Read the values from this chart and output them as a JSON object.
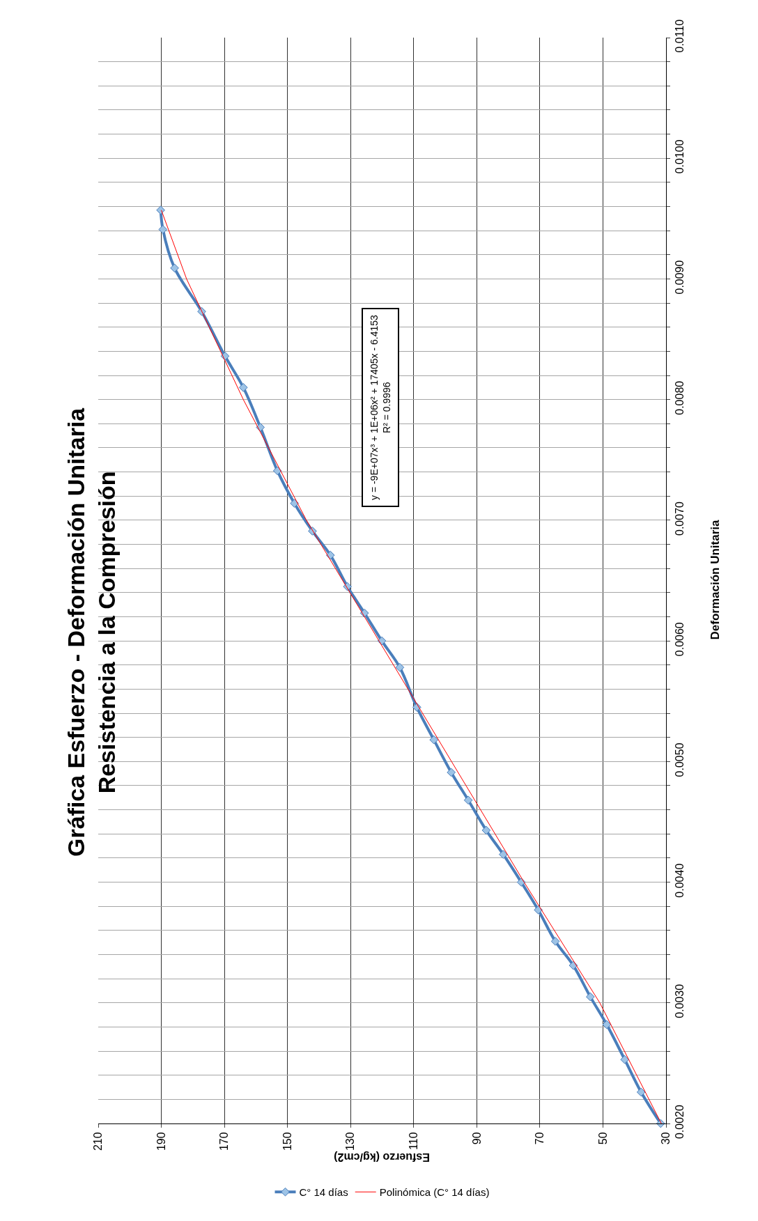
{
  "chart_data": {
    "type": "line",
    "title": "Gráfica Esfuerzo - Deformación Unitaria\nResistencia a la Compresión",
    "xlabel": "Esfuerzo (kg/cm2)",
    "ylabel": "Deformación Unitaria",
    "annotations": [
      "y = -9E+07x³ + 1E+06x² + 17405x - 6.4153\nR² = 0.9996"
    ],
    "series": [
      {
        "name": "C° 14 días",
        "color": "#4a7ebb",
        "marker": "diamond",
        "values": [
          0.002,
          0.00226,
          0.00253,
          0.00282,
          0.00305,
          0.00331,
          0.00351,
          0.00377,
          0.004,
          0.00423,
          0.00443,
          0.00468,
          0.00491,
          0.00518,
          0.00545,
          0.00578,
          0.006,
          0.00623,
          0.00645,
          0.00671,
          0.00691,
          0.00714,
          0.00741,
          0.00777,
          0.0081,
          0.00836,
          0.00873,
          0.00909,
          0.00941,
          0.00957
        ],
        "x": [
          31.7,
          37.9,
          43.1,
          48.8,
          54.0,
          59.4,
          65.1,
          70.5,
          75.9,
          81.6,
          87.0,
          92.7,
          98.1,
          103.6,
          109.0,
          114.4,
          120.1,
          125.6,
          131.0,
          136.4,
          142.1,
          147.8,
          153.2,
          158.6,
          164.0,
          169.8,
          177.2,
          185.8,
          189.5,
          190.2
        ]
      },
      {
        "name": "Polinómica (C° 14 días)",
        "color": "#ff0000",
        "marker": "none",
        "values": [
          0.002,
          0.003,
          0.004,
          0.005,
          0.006,
          0.007,
          0.008,
          0.009,
          0.00957
        ],
        "x": [
          31.5,
          51,
          75,
          98,
          121,
          144,
          164,
          182,
          190
        ]
      }
    ],
    "ylim": [
      0.002,
      0.011
    ],
    "yticks": [
      {
        "value": 0.002,
        "label": "0.0020"
      },
      {
        "value": 0.0022,
        "label": null
      },
      {
        "value": 0.0024,
        "label": null
      },
      {
        "value": 0.0026,
        "label": null
      },
      {
        "value": 0.0028,
        "label": null
      },
      {
        "value": 0.003,
        "label": "0.0030"
      },
      {
        "value": 0.0032,
        "label": null
      },
      {
        "value": 0.0034,
        "label": null
      },
      {
        "value": 0.0036,
        "label": null
      },
      {
        "value": 0.0038,
        "label": null
      },
      {
        "value": 0.004,
        "label": "0.0040"
      },
      {
        "value": 0.0042,
        "label": null
      },
      {
        "value": 0.0044,
        "label": null
      },
      {
        "value": 0.0046,
        "label": null
      },
      {
        "value": 0.0048,
        "label": null
      },
      {
        "value": 0.005,
        "label": "0.0050"
      },
      {
        "value": 0.0052,
        "label": null
      },
      {
        "value": 0.0054,
        "label": null
      },
      {
        "value": 0.0056,
        "label": null
      },
      {
        "value": 0.0058,
        "label": null
      },
      {
        "value": 0.006,
        "label": "0.0060"
      },
      {
        "value": 0.0062,
        "label": null
      },
      {
        "value": 0.0064,
        "label": null
      },
      {
        "value": 0.0066,
        "label": null
      },
      {
        "value": 0.0068,
        "label": null
      },
      {
        "value": 0.007,
        "label": "0.0070"
      },
      {
        "value": 0.0072,
        "label": null
      },
      {
        "value": 0.0074,
        "label": null
      },
      {
        "value": 0.0076,
        "label": null
      },
      {
        "value": 0.0078,
        "label": null
      },
      {
        "value": 0.008,
        "label": "0.0080"
      },
      {
        "value": 0.0082,
        "label": null
      },
      {
        "value": 0.0084,
        "label": null
      },
      {
        "value": 0.0086,
        "label": null
      },
      {
        "value": 0.0088,
        "label": null
      },
      {
        "value": 0.009,
        "label": "0.0090"
      },
      {
        "value": 0.0092,
        "label": null
      },
      {
        "value": 0.0094,
        "label": null
      },
      {
        "value": 0.0096,
        "label": null
      },
      {
        "value": 0.0098,
        "label": null
      },
      {
        "value": 0.01,
        "label": "0.0100"
      },
      {
        "value": 0.0102,
        "label": null
      },
      {
        "value": 0.0104,
        "label": null
      },
      {
        "value": 0.0106,
        "label": null
      },
      {
        "value": 0.0108,
        "label": null
      },
      {
        "value": 0.011,
        "label": "0.0110"
      }
    ],
    "xlim": [
      210,
      30
    ],
    "xticks": [
      210,
      190,
      170,
      150,
      130,
      110,
      90,
      70,
      50,
      30
    ],
    "grid": true,
    "legend": "bottom",
    "line_style": "solid"
  }
}
